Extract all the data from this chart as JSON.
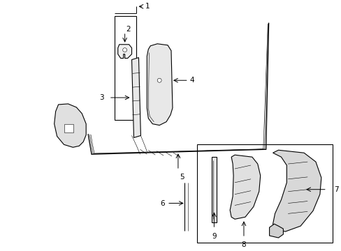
{
  "bg_color": "#ffffff",
  "line_color": "#000000",
  "figsize": [
    4.89,
    3.6
  ],
  "dpi": 100,
  "lw": 0.8,
  "tlw": 0.4
}
